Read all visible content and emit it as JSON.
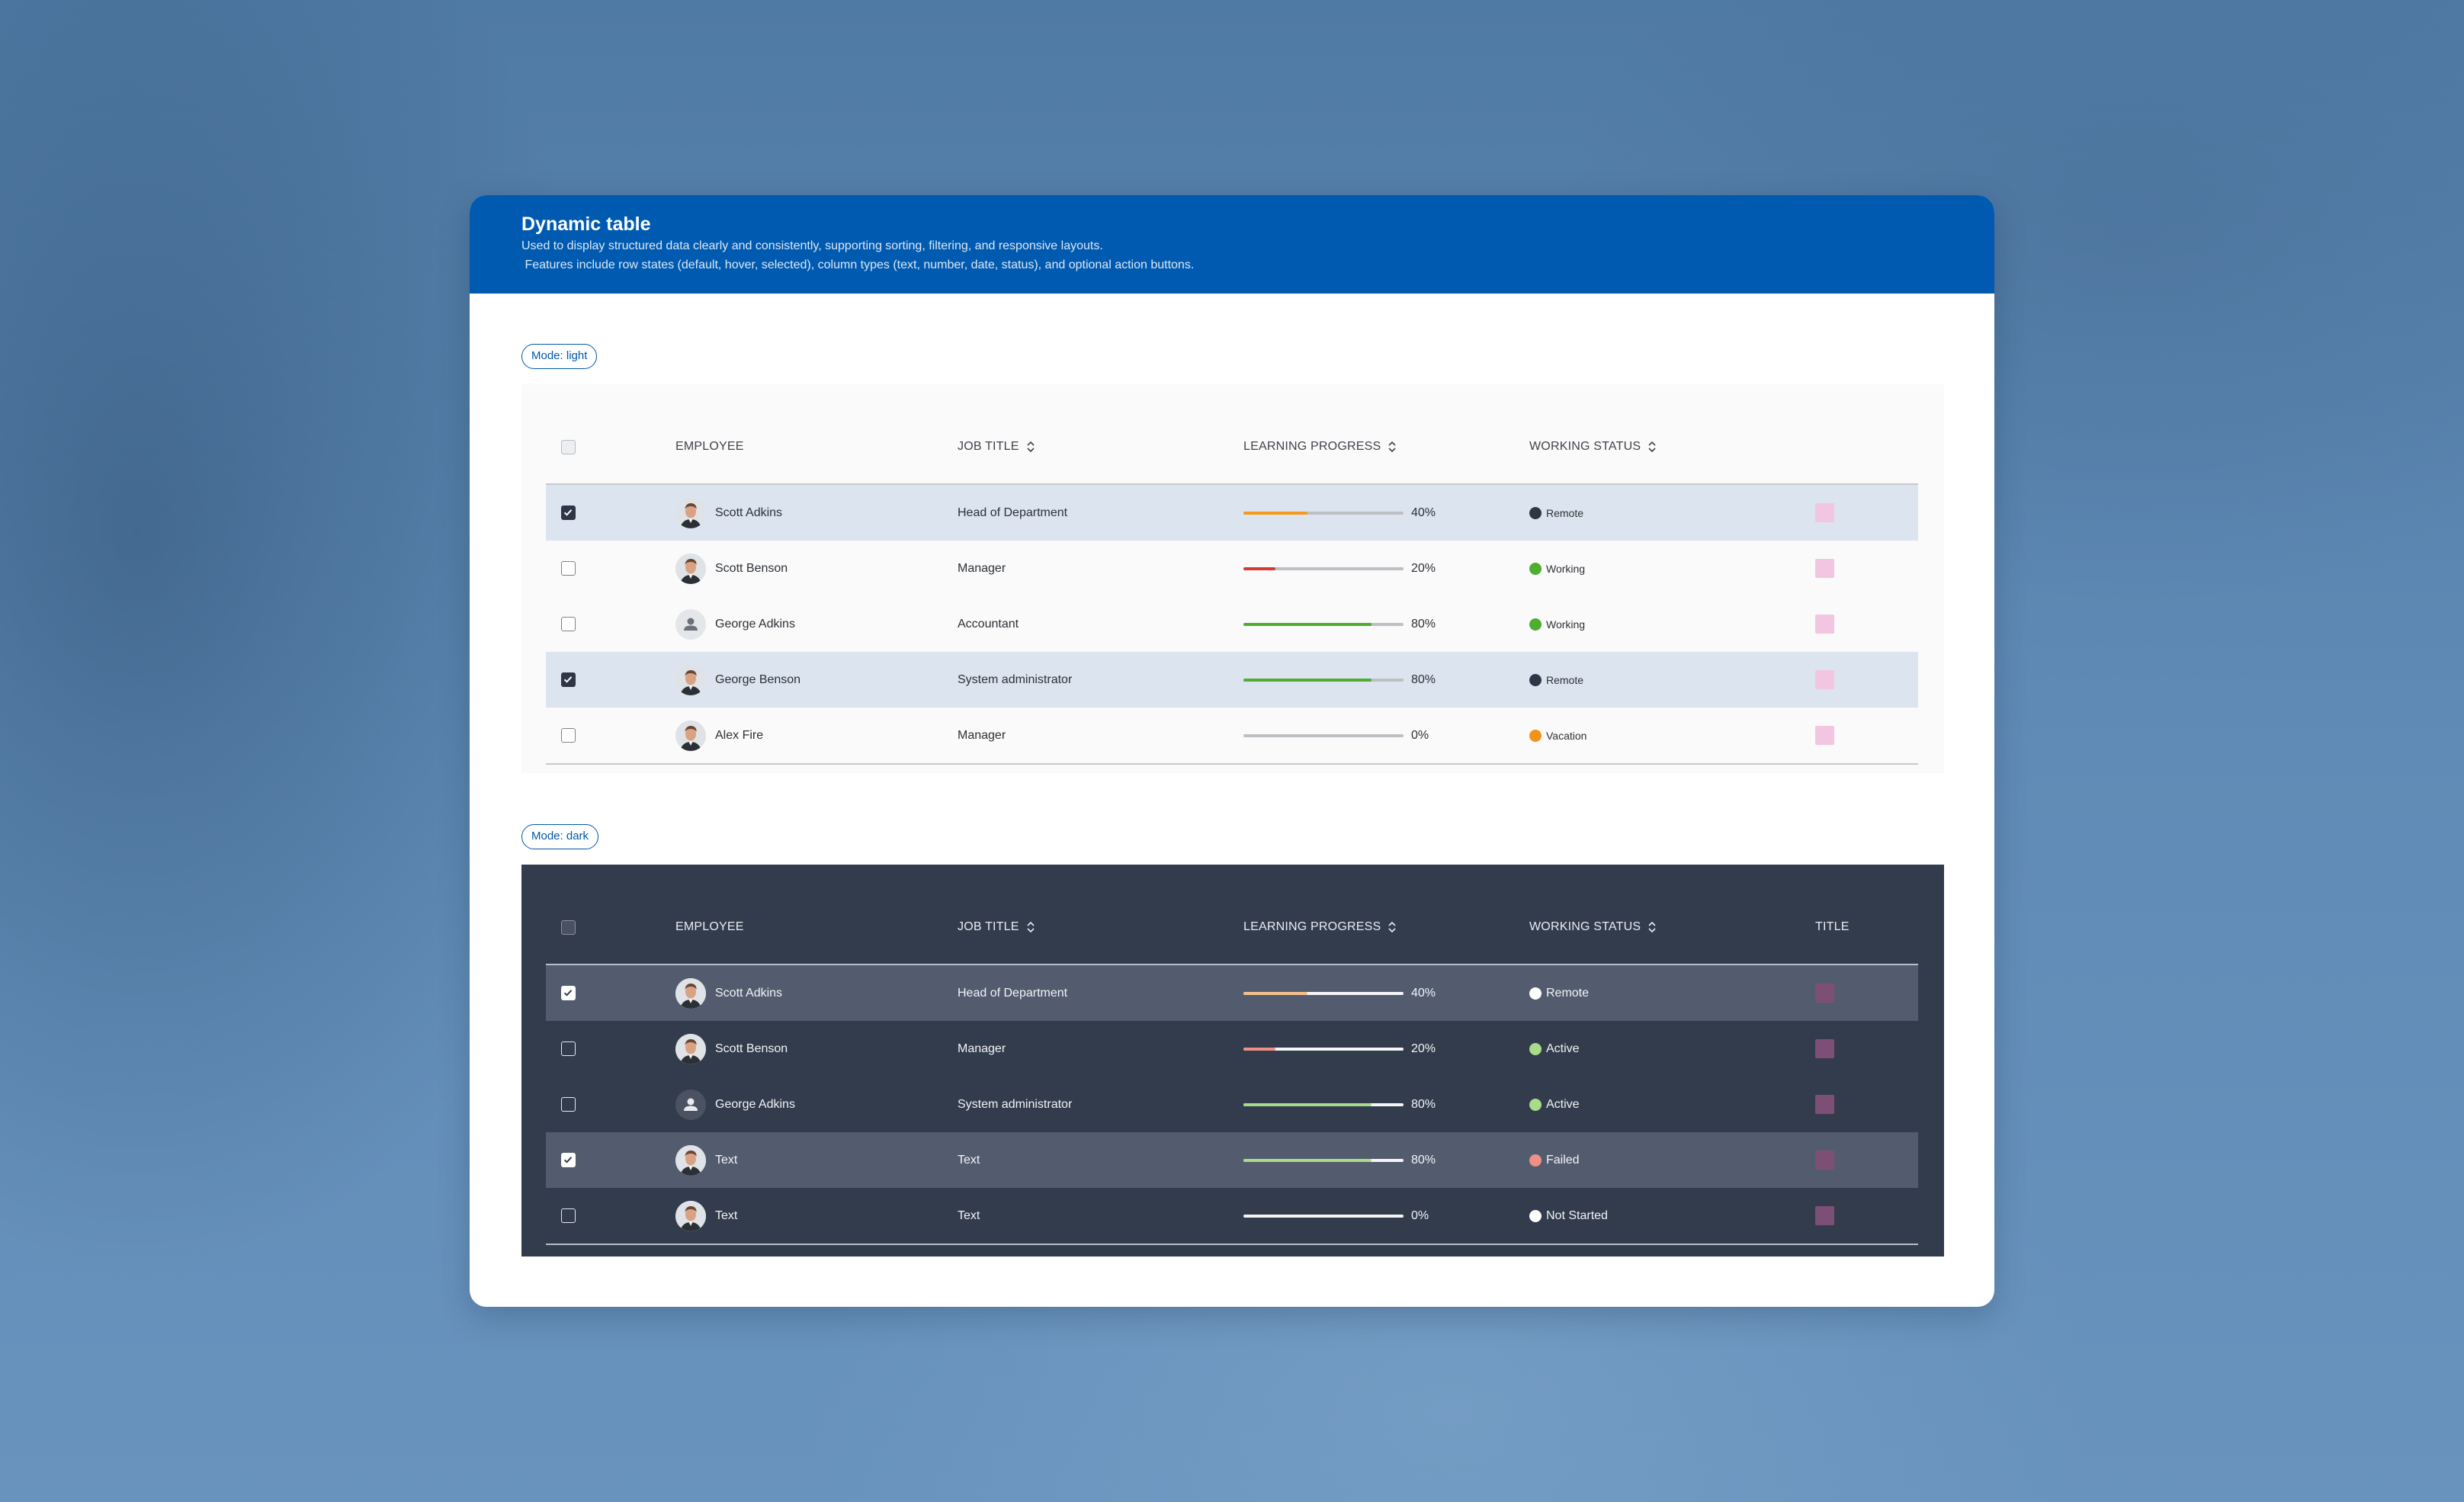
{
  "header": {
    "title": "Dynamic table",
    "desc_line1": "Used to display structured data clearly and consistently, supporting sorting, filtering, and responsive layouts.",
    "desc_line2": " Features include row states (default, hover, selected), column types (text, number, date, status), and optional action buttons."
  },
  "colors": {
    "header_bg": "#005bb0",
    "light_selected_row": "#dbe4ef",
    "dark_panel": "#333c4d",
    "dark_selected_row": "#535c6e"
  },
  "light": {
    "mode_label": "Mode: light",
    "columns": {
      "employee": "EMPLOYEE",
      "job_title": "JOB TITLE",
      "progress": "LEARNING PROGRESS",
      "status": "WORKING STATUS",
      "title": ""
    },
    "rows": [
      {
        "checked": true,
        "avatar": "person-photo",
        "name": "Scott Adkins",
        "job": "Head of Department",
        "progress": 40,
        "progress_label": "40%",
        "progress_color": "#f29a1b",
        "status": "Remote",
        "status_color": "#2f3746"
      },
      {
        "checked": false,
        "avatar": "person-photo",
        "name": "Scott Benson",
        "job": "Manager",
        "progress": 20,
        "progress_label": "20%",
        "progress_color": "#d83a32",
        "status": "Working",
        "status_color": "#4fae30"
      },
      {
        "checked": false,
        "avatar": "generic-user",
        "name": "George Adkins",
        "job": "Accountant",
        "progress": 80,
        "progress_label": "80%",
        "progress_color": "#4fae30",
        "status": "Working",
        "status_color": "#4fae30"
      },
      {
        "checked": true,
        "avatar": "person-photo",
        "name": "George Benson",
        "job": "System administrator",
        "progress": 80,
        "progress_label": "80%",
        "progress_color": "#4fae30",
        "status": "Remote",
        "status_color": "#2f3746"
      },
      {
        "checked": false,
        "avatar": "person-photo",
        "name": "Alex Fire",
        "job": "Manager",
        "progress": 0,
        "progress_label": "0%",
        "progress_color": "#bcbfc4",
        "status": "Vacation",
        "status_color": "#f39319"
      }
    ]
  },
  "dark": {
    "mode_label": "Mode: dark",
    "columns": {
      "employee": "EMPLOYEE",
      "job_title": "JOB TITLE",
      "progress": "LEARNING PROGRESS",
      "status": "WORKING STATUS",
      "title": "TITLE"
    },
    "rows": [
      {
        "checked": true,
        "avatar": "person-photo",
        "name": "Scott Adkins",
        "job": "Head of Department",
        "progress": 40,
        "progress_label": "40%",
        "progress_color": "#f5c08a",
        "status": "Remote",
        "status_color": "#ffffff"
      },
      {
        "checked": false,
        "avatar": "person-photo",
        "name": "Scott Benson",
        "job": "Manager",
        "progress": 20,
        "progress_label": "20%",
        "progress_color": "#ef8f86",
        "status": "Active",
        "status_color": "#a8dc8a"
      },
      {
        "checked": false,
        "avatar": "generic-user",
        "name": "George Adkins",
        "job": "System administrator",
        "progress": 80,
        "progress_label": "80%",
        "progress_color": "#a8dc8a",
        "status": "Active",
        "status_color": "#a8dc8a"
      },
      {
        "checked": true,
        "avatar": "person-photo",
        "name": "Text",
        "job": "Text",
        "progress": 80,
        "progress_label": "80%",
        "progress_color": "#a8dc8a",
        "status": "Failed",
        "status_color": "#ef8f86"
      },
      {
        "checked": false,
        "avatar": "person-photo",
        "name": "Text",
        "job": "Text",
        "progress": 0,
        "progress_label": "0%",
        "progress_color": "#f4f5f7",
        "status": "Not Started",
        "status_color": "#ffffff"
      }
    ]
  }
}
